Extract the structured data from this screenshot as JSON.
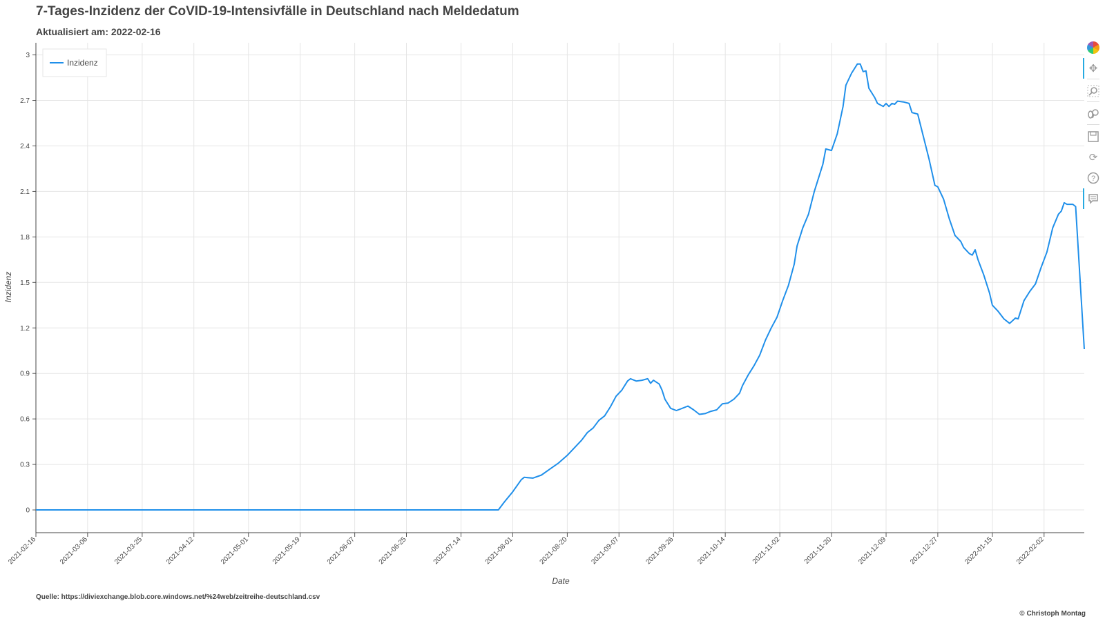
{
  "header": {
    "title": "7-Tages-Inzidenz der CoVID-19-Intensivfälle in Deutschland nach Meldedatum",
    "subtitle": "Aktualisiert am: 2022-02-16"
  },
  "footer": {
    "source": "Quelle: https://diviexchange.blob.core.windows.net/%24web/zeitreihe-deutschland.csv",
    "credit": "© Christoph Montag"
  },
  "toolbar": {
    "tools": [
      {
        "name": "bokeh-logo",
        "icon": "bokeh-logo-icon"
      },
      {
        "name": "pan-tool",
        "icon": "move-icon",
        "active": true
      },
      {
        "name": "box-zoom-tool",
        "icon": "magnifier-icon"
      },
      {
        "name": "wheel-zoom-tool",
        "icon": "wheel-zoom-icon"
      },
      {
        "name": "save-tool",
        "icon": "save-icon"
      },
      {
        "name": "reset-tool",
        "icon": "reset-icon"
      },
      {
        "name": "help-tool",
        "icon": "help-icon"
      },
      {
        "name": "hover-tool",
        "icon": "comment-icon",
        "active": true
      }
    ]
  },
  "chart_data": {
    "type": "line",
    "title": "7-Tages-Inzidenz der CoVID-19-Intensivfälle in Deutschland nach Meldedatum",
    "xlabel": "Date",
    "ylabel": "Inzidenz",
    "xlim": [
      "2021-02-16",
      "2022-02-16"
    ],
    "ylim": [
      -0.15,
      3.08
    ],
    "x_ticks": [
      "2021-02-16",
      "2021-03-06",
      "2021-03-25",
      "2021-04-12",
      "2021-05-01",
      "2021-05-19",
      "2021-06-07",
      "2021-06-25",
      "2021-07-14",
      "2021-08-01",
      "2021-08-20",
      "2021-09-07",
      "2021-09-26",
      "2021-10-14",
      "2021-11-02",
      "2021-11-20",
      "2021-12-09",
      "2021-12-27",
      "2022-01-15",
      "2022-02-02"
    ],
    "y_ticks": [
      "0",
      "0.3",
      "0.6",
      "0.9",
      "1.2",
      "1.5",
      "1.8",
      "2.1",
      "2.4",
      "2.7",
      "3"
    ],
    "grid": true,
    "legend_position": "top-left",
    "line_color": "#1f8fea",
    "series": [
      {
        "name": "Inzidenz",
        "points": [
          [
            "2021-02-16",
            0
          ],
          [
            "2021-07-27",
            0
          ],
          [
            "2021-07-29",
            0.05
          ],
          [
            "2021-08-01",
            0.12
          ],
          [
            "2021-08-04",
            0.2
          ],
          [
            "2021-08-05",
            0.215
          ],
          [
            "2021-08-08",
            0.21
          ],
          [
            "2021-08-11",
            0.23
          ],
          [
            "2021-08-14",
            0.27
          ],
          [
            "2021-08-17",
            0.31
          ],
          [
            "2021-08-20",
            0.36
          ],
          [
            "2021-08-23",
            0.42
          ],
          [
            "2021-08-25",
            0.46
          ],
          [
            "2021-08-27",
            0.51
          ],
          [
            "2021-08-29",
            0.54
          ],
          [
            "2021-08-31",
            0.59
          ],
          [
            "2021-09-02",
            0.62
          ],
          [
            "2021-09-04",
            0.68
          ],
          [
            "2021-09-06",
            0.75
          ],
          [
            "2021-09-08",
            0.79
          ],
          [
            "2021-09-10",
            0.85
          ],
          [
            "2021-09-11",
            0.865
          ],
          [
            "2021-09-13",
            0.85
          ],
          [
            "2021-09-15",
            0.855
          ],
          [
            "2021-09-17",
            0.865
          ],
          [
            "2021-09-18",
            0.835
          ],
          [
            "2021-09-19",
            0.855
          ],
          [
            "2021-09-21",
            0.83
          ],
          [
            "2021-09-22",
            0.79
          ],
          [
            "2021-09-23",
            0.73
          ],
          [
            "2021-09-25",
            0.67
          ],
          [
            "2021-09-27",
            0.655
          ],
          [
            "2021-09-29",
            0.67
          ],
          [
            "2021-10-01",
            0.685
          ],
          [
            "2021-10-03",
            0.66
          ],
          [
            "2021-10-05",
            0.63
          ],
          [
            "2021-10-07",
            0.635
          ],
          [
            "2021-10-09",
            0.65
          ],
          [
            "2021-10-11",
            0.66
          ],
          [
            "2021-10-13",
            0.7
          ],
          [
            "2021-10-15",
            0.705
          ],
          [
            "2021-10-17",
            0.73
          ],
          [
            "2021-10-19",
            0.77
          ],
          [
            "2021-10-20",
            0.82
          ],
          [
            "2021-10-22",
            0.89
          ],
          [
            "2021-10-24",
            0.95
          ],
          [
            "2021-10-26",
            1.02
          ],
          [
            "2021-10-28",
            1.12
          ],
          [
            "2021-10-30",
            1.2
          ],
          [
            "2021-11-01",
            1.27
          ],
          [
            "2021-11-03",
            1.38
          ],
          [
            "2021-11-05",
            1.48
          ],
          [
            "2021-11-07",
            1.62
          ],
          [
            "2021-11-08",
            1.74
          ],
          [
            "2021-11-10",
            1.86
          ],
          [
            "2021-11-12",
            1.95
          ],
          [
            "2021-11-14",
            2.1
          ],
          [
            "2021-11-16",
            2.22
          ],
          [
            "2021-11-17",
            2.28
          ],
          [
            "2021-11-18",
            2.38
          ],
          [
            "2021-11-20",
            2.37
          ],
          [
            "2021-11-22",
            2.48
          ],
          [
            "2021-11-24",
            2.66
          ],
          [
            "2021-11-25",
            2.8
          ],
          [
            "2021-11-27",
            2.88
          ],
          [
            "2021-11-29",
            2.94
          ],
          [
            "2021-11-30",
            2.94
          ],
          [
            "2021-12-01",
            2.89
          ],
          [
            "2021-12-02",
            2.895
          ],
          [
            "2021-12-03",
            2.78
          ],
          [
            "2021-12-05",
            2.72
          ],
          [
            "2021-12-06",
            2.68
          ],
          [
            "2021-12-08",
            2.66
          ],
          [
            "2021-12-09",
            2.68
          ],
          [
            "2021-12-10",
            2.66
          ],
          [
            "2021-12-11",
            2.68
          ],
          [
            "2021-12-12",
            2.675
          ],
          [
            "2021-12-13",
            2.695
          ],
          [
            "2021-12-15",
            2.69
          ],
          [
            "2021-12-17",
            2.68
          ],
          [
            "2021-12-18",
            2.62
          ],
          [
            "2021-12-20",
            2.61
          ],
          [
            "2021-12-22",
            2.46
          ],
          [
            "2021-12-24",
            2.31
          ],
          [
            "2021-12-26",
            2.14
          ],
          [
            "2021-12-27",
            2.13
          ],
          [
            "2021-12-29",
            2.05
          ],
          [
            "2021-12-31",
            1.92
          ],
          [
            "2022-01-02",
            1.81
          ],
          [
            "2022-01-04",
            1.77
          ],
          [
            "2022-01-05",
            1.73
          ],
          [
            "2022-01-07",
            1.69
          ],
          [
            "2022-01-08",
            1.68
          ],
          [
            "2022-01-09",
            1.715
          ],
          [
            "2022-01-10",
            1.65
          ],
          [
            "2022-01-12",
            1.55
          ],
          [
            "2022-01-14",
            1.43
          ],
          [
            "2022-01-15",
            1.35
          ],
          [
            "2022-01-17",
            1.31
          ],
          [
            "2022-01-19",
            1.26
          ],
          [
            "2022-01-21",
            1.23
          ],
          [
            "2022-01-23",
            1.265
          ],
          [
            "2022-01-24",
            1.26
          ],
          [
            "2022-01-26",
            1.38
          ],
          [
            "2022-01-28",
            1.44
          ],
          [
            "2022-01-30",
            1.49
          ],
          [
            "2022-02-01",
            1.6
          ],
          [
            "2022-02-03",
            1.7
          ],
          [
            "2022-02-05",
            1.86
          ],
          [
            "2022-02-07",
            1.95
          ],
          [
            "2022-02-08",
            1.97
          ],
          [
            "2022-02-09",
            2.025
          ],
          [
            "2022-02-10",
            2.015
          ],
          [
            "2022-02-12",
            2.015
          ],
          [
            "2022-02-13",
            2.0
          ],
          [
            "2022-02-16",
            1.06
          ]
        ]
      }
    ]
  }
}
